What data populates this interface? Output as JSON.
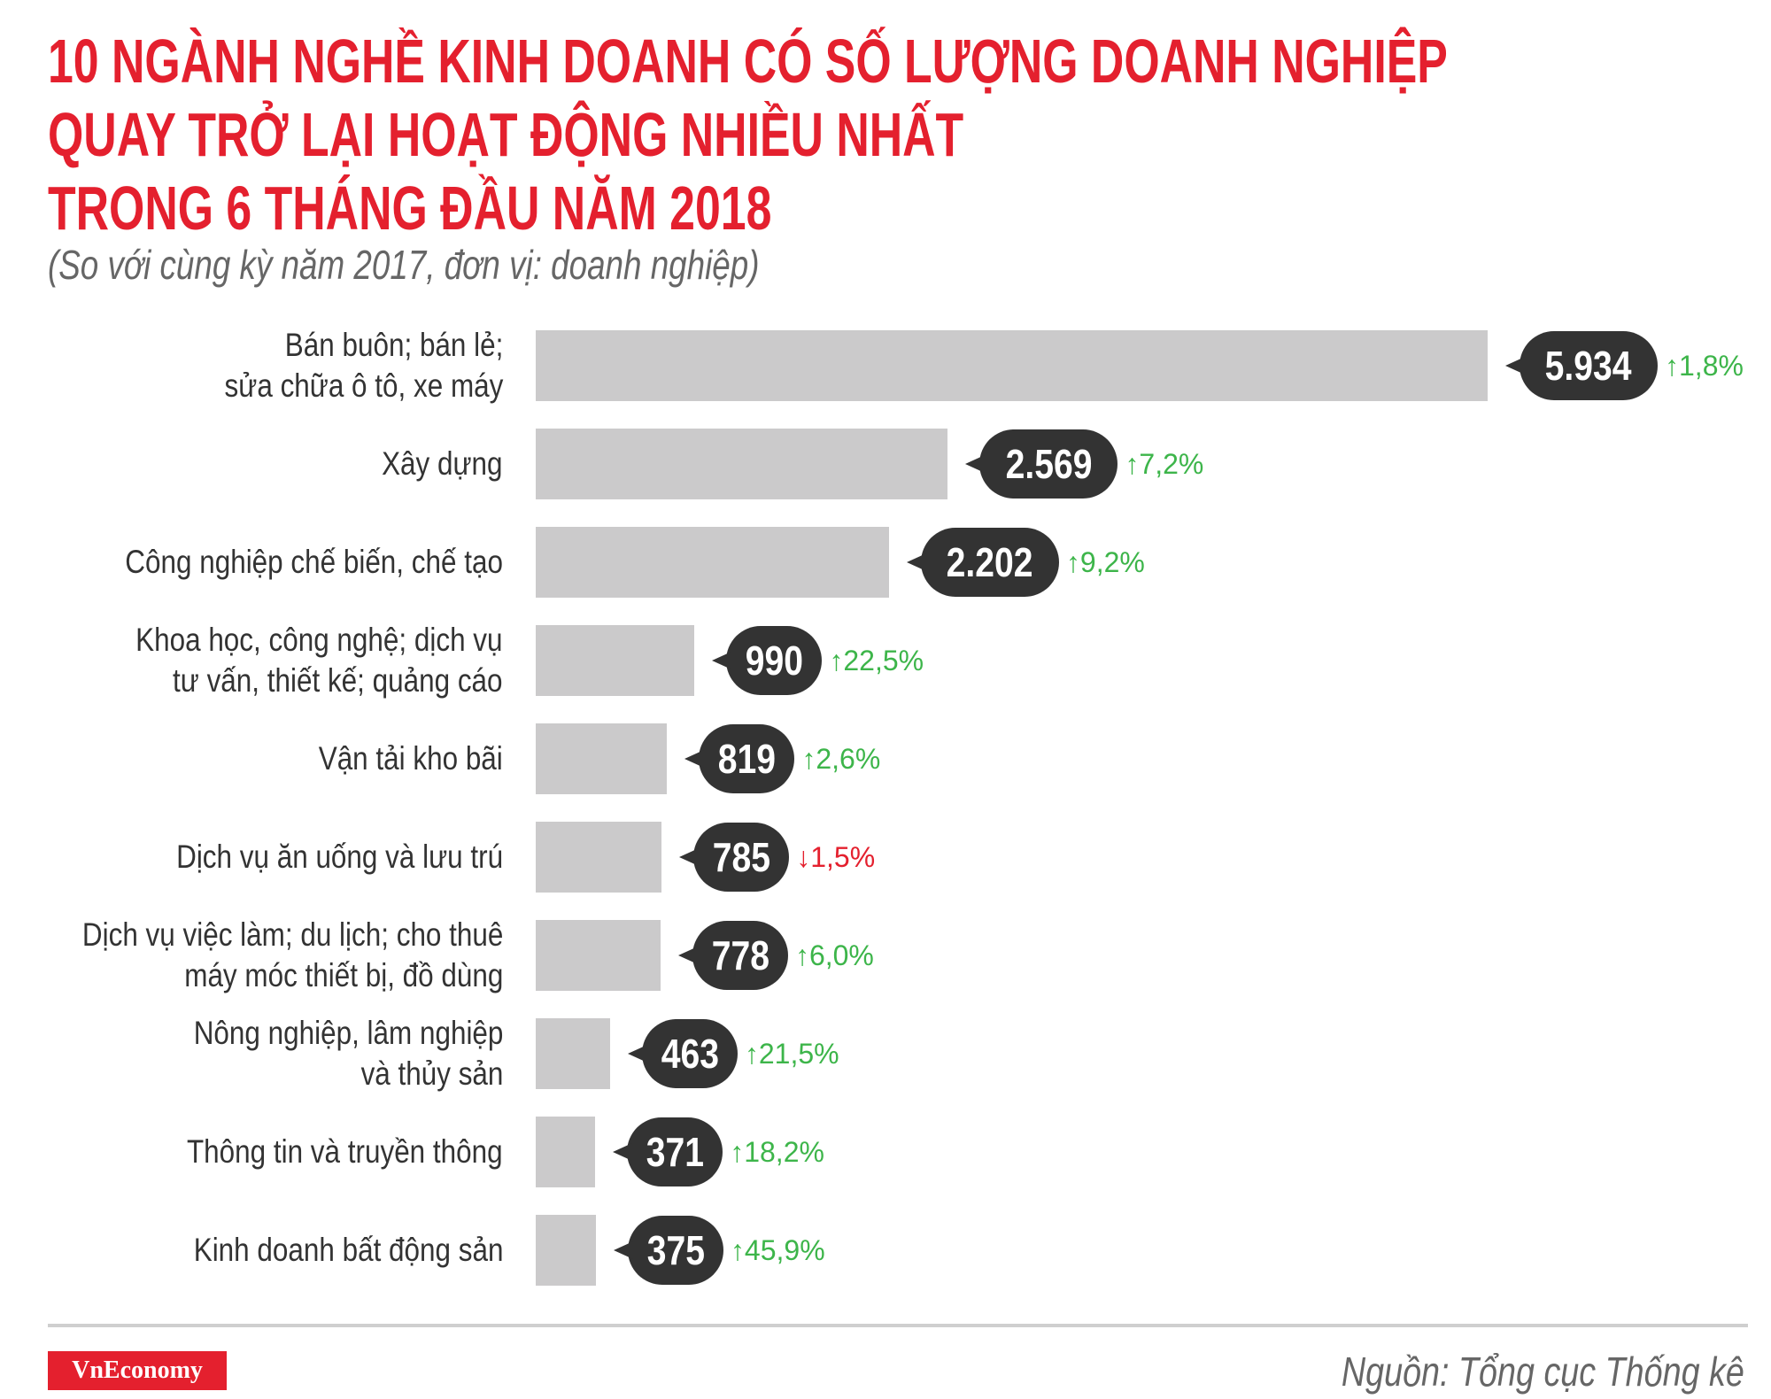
{
  "chart_data": {
    "type": "bar",
    "orientation": "horizontal",
    "title": [
      "10 NGÀNH NGHỀ KINH DOANH CÓ SỐ LƯỢNG DOANH NGHIỆP",
      "QUAY TRỞ LẠI HOẠT ĐỘNG NHIỀU NHẤT",
      "TRONG 6 THÁNG ĐẦU NĂM 2018"
    ],
    "subtitle": "(So với cùng kỳ năm 2017, đơn vị: doanh nghiệp)",
    "categories": [
      [
        "Bán buôn; bán lẻ;",
        "sửa chữa ô tô, xe máy"
      ],
      [
        "Xây dựng"
      ],
      [
        "Công nghiệp chế biến, chế tạo"
      ],
      [
        "Khoa học, công nghệ; dịch vụ",
        "tư vấn, thiết kế; quảng cáo"
      ],
      [
        "Vận tải kho bãi"
      ],
      [
        "Dịch vụ ăn uống và lưu trú"
      ],
      [
        "Dịch vụ việc làm; du lịch; cho thuê",
        "máy móc thiết bị, đồ dùng"
      ],
      [
        "Nông nghiệp, lâm nghiệp",
        "và thủy sản"
      ],
      [
        "Thông tin và truyền thông"
      ],
      [
        "Kinh doanh bất động sản"
      ]
    ],
    "values": [
      5934,
      2569,
      2202,
      990,
      819,
      785,
      778,
      463,
      371,
      375
    ],
    "value_labels": [
      "5.934",
      "2.569",
      "2.202",
      "990",
      "819",
      "785",
      "778",
      "463",
      "371",
      "375"
    ],
    "change_labels": [
      "1,8%",
      "7,2%",
      "9,2%",
      "22,5%",
      "2,6%",
      "1,5%",
      "6,0%",
      "21,5%",
      "18,2%",
      "45,9%"
    ],
    "change_direction": [
      "up",
      "up",
      "up",
      "up",
      "up",
      "down",
      "up",
      "up",
      "up",
      "up"
    ],
    "colors": {
      "title": "#e4202e",
      "bar": "#cbcacb",
      "bubble": "#333333",
      "up": "#3db54a",
      "down": "#e4202e"
    }
  },
  "footer": {
    "logo": "VnEconomy",
    "source": "Nguồn: Tổng cục Thống kê"
  }
}
